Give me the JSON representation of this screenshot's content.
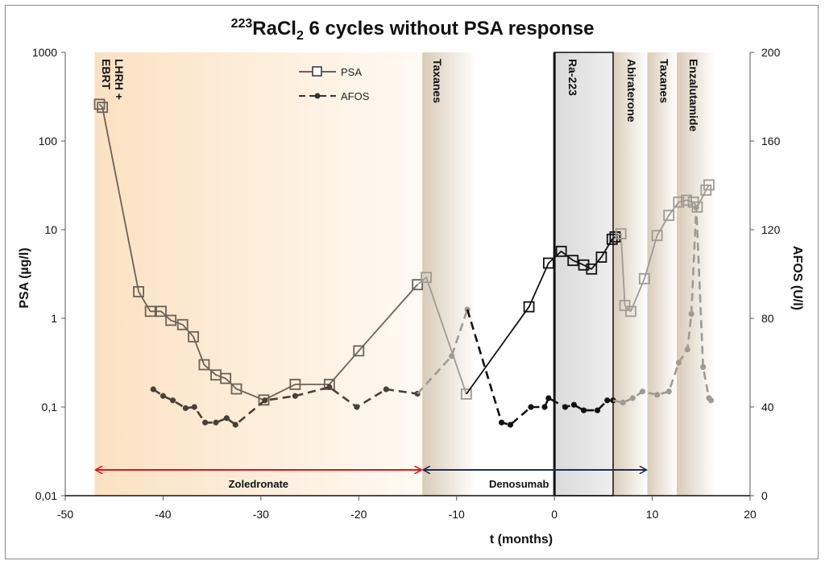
{
  "chart_data": {
    "type": "line",
    "title": {
      "superscript": "223",
      "base": "RaCl",
      "subscript": "2",
      "rest": " 6 cycles without PSA response"
    },
    "xlabel": "t (months)",
    "ylabel_left": "PSA (µg/l)",
    "ylabel_right": "AFOS (U/l)",
    "xlim": [
      -50,
      20
    ],
    "ylim_left": [
      0.01,
      1000
    ],
    "ylim_left_scale": "log",
    "ylim_right": [
      0,
      200
    ],
    "x_ticks": [
      "-50",
      "-40",
      "-30",
      "-20",
      "-10",
      "0",
      "10",
      "20"
    ],
    "x_tick_values": [
      -50,
      -40,
      -30,
      -20,
      -10,
      0,
      10,
      20
    ],
    "y_left_ticks": [
      "0,01",
      "0,1",
      "1",
      "10",
      "100",
      "1000"
    ],
    "y_left_tick_values": [
      0.01,
      0.1,
      1,
      10,
      100,
      1000
    ],
    "y_right_ticks": [
      "0",
      "40",
      "80",
      "120",
      "160",
      "200"
    ],
    "y_right_tick_values": [
      0,
      40,
      80,
      120,
      160,
      200
    ],
    "legend": [
      {
        "name": "PSA",
        "style": "solid line with open squares"
      },
      {
        "name": "AFOS",
        "style": "dashed line with filled circles"
      }
    ],
    "phases": [
      {
        "label": "LHRH +",
        "start": -47,
        "end": -13.5,
        "color": "#fbe3c6"
      },
      {
        "label": "EBRT",
        "start": -47,
        "end": -13.5,
        "color": "#fbe3c6"
      },
      {
        "label": "Taxanes",
        "start": -13.5,
        "end": -8,
        "color": "#e0d3bf"
      },
      {
        "label": "Ra-223",
        "start": 0,
        "end": 6,
        "color": "#e4e4e4"
      },
      {
        "label": "Abiraterone",
        "start": 6,
        "end": 9.5,
        "color": "#e0d3bf"
      },
      {
        "label": "Taxanes",
        "start": 9.5,
        "end": 12.5,
        "color": "#e0d3bf"
      },
      {
        "label": "Enzalutamide",
        "start": 12.5,
        "end": 16.5,
        "color": "#e0d3bf"
      }
    ],
    "treatment_bars": [
      {
        "label": "Zoledronate",
        "start": -47,
        "end": -13.5,
        "color": "#e0141e"
      },
      {
        "label": "Denosumab",
        "start": -13.5,
        "end": 9.5,
        "color": "#1f2d4d"
      }
    ],
    "vertical_line_at": 0,
    "series": [
      {
        "name": "PSA",
        "axis": "left",
        "segments": [
          {
            "color": "#6b6157",
            "points": [
              [
                -46.5,
                260
              ],
              [
                -46.2,
                240
              ],
              [
                -42.5,
                2.0
              ],
              [
                -41.3,
                1.2
              ],
              [
                -40.2,
                1.2
              ],
              [
                -39.2,
                0.95
              ],
              [
                -38.0,
                0.85
              ],
              [
                -36.9,
                0.62
              ],
              [
                -35.8,
                0.3
              ],
              [
                -34.6,
                0.23
              ],
              [
                -33.6,
                0.21
              ],
              [
                -32.5,
                0.16
              ],
              [
                -29.7,
                0.12
              ],
              [
                -26.5,
                0.18
              ],
              [
                -23.0,
                0.18
              ],
              [
                -20.0,
                0.43
              ],
              [
                -14.0,
                2.4
              ]
            ]
          },
          {
            "color": "#9e9a95",
            "points": [
              [
                -14.0,
                2.4
              ],
              [
                -13.1,
                2.9
              ],
              [
                -9.0,
                0.14
              ]
            ]
          },
          {
            "color": "#111111",
            "points": [
              [
                -9.0,
                0.14
              ],
              [
                -2.6,
                1.35
              ],
              [
                -0.6,
                4.2
              ],
              [
                0.7,
                5.7
              ],
              [
                1.9,
                4.5
              ],
              [
                3.0,
                4.0
              ],
              [
                3.8,
                3.6
              ],
              [
                4.8,
                4.9
              ],
              [
                5.9,
                7.8
              ],
              [
                6.2,
                8.3
              ]
            ]
          },
          {
            "color": "#9e9a95",
            "points": [
              [
                6.2,
                8.3
              ],
              [
                6.8,
                9.0
              ],
              [
                7.2,
                1.4
              ],
              [
                7.8,
                1.2
              ],
              [
                9.2,
                2.8
              ],
              [
                10.5,
                8.6
              ],
              [
                11.7,
                14.5
              ],
              [
                12.7,
                20.5
              ],
              [
                13.5,
                21.5
              ],
              [
                14.2,
                20.5
              ],
              [
                14.6,
                18.0
              ],
              [
                15.5,
                28.0
              ],
              [
                15.8,
                32.0
              ]
            ]
          }
        ]
      },
      {
        "name": "AFOS",
        "axis": "right",
        "segments": [
          {
            "color": "#4a4036",
            "points": [
              [
                -41.0,
                48
              ],
              [
                -40.0,
                45
              ],
              [
                -39.0,
                43
              ],
              [
                -37.7,
                39.5
              ],
              [
                -36.8,
                40
              ],
              [
                -35.7,
                33
              ],
              [
                -34.6,
                33
              ],
              [
                -33.5,
                35
              ],
              [
                -32.6,
                32
              ],
              [
                -29.6,
                43
              ],
              [
                -26.5,
                45
              ],
              [
                -23.0,
                49
              ],
              [
                -20.2,
                40
              ],
              [
                -17.2,
                48
              ],
              [
                -14.0,
                46
              ]
            ]
          },
          {
            "color": "#9e9a95",
            "points": [
              [
                -14.0,
                46
              ],
              [
                -10.5,
                63
              ],
              [
                -8.9,
                84
              ]
            ]
          },
          {
            "color": "#111111",
            "points": [
              [
                -8.9,
                84
              ],
              [
                -5.4,
                33
              ],
              [
                -4.5,
                32
              ],
              [
                -2.4,
                40
              ],
              [
                -1.0,
                40
              ],
              [
                -0.6,
                44
              ],
              [
                1.1,
                40
              ],
              [
                2.0,
                41
              ],
              [
                3.0,
                38.5
              ],
              [
                4.4,
                38.5
              ],
              [
                5.4,
                43
              ],
              [
                6.0,
                43
              ]
            ]
          },
          {
            "color": "#9e9a95",
            "points": [
              [
                6.0,
                43
              ],
              [
                7.0,
                42
              ],
              [
                8.0,
                44
              ],
              [
                9.0,
                47
              ],
              [
                10.5,
                45.5
              ],
              [
                11.7,
                47
              ],
              [
                12.7,
                60
              ],
              [
                13.6,
                66
              ],
              [
                14.0,
                82
              ],
              [
                14.5,
                130
              ],
              [
                15.2,
                58
              ],
              [
                15.8,
                44
              ],
              [
                16.0,
                43
              ]
            ]
          }
        ]
      }
    ]
  }
}
